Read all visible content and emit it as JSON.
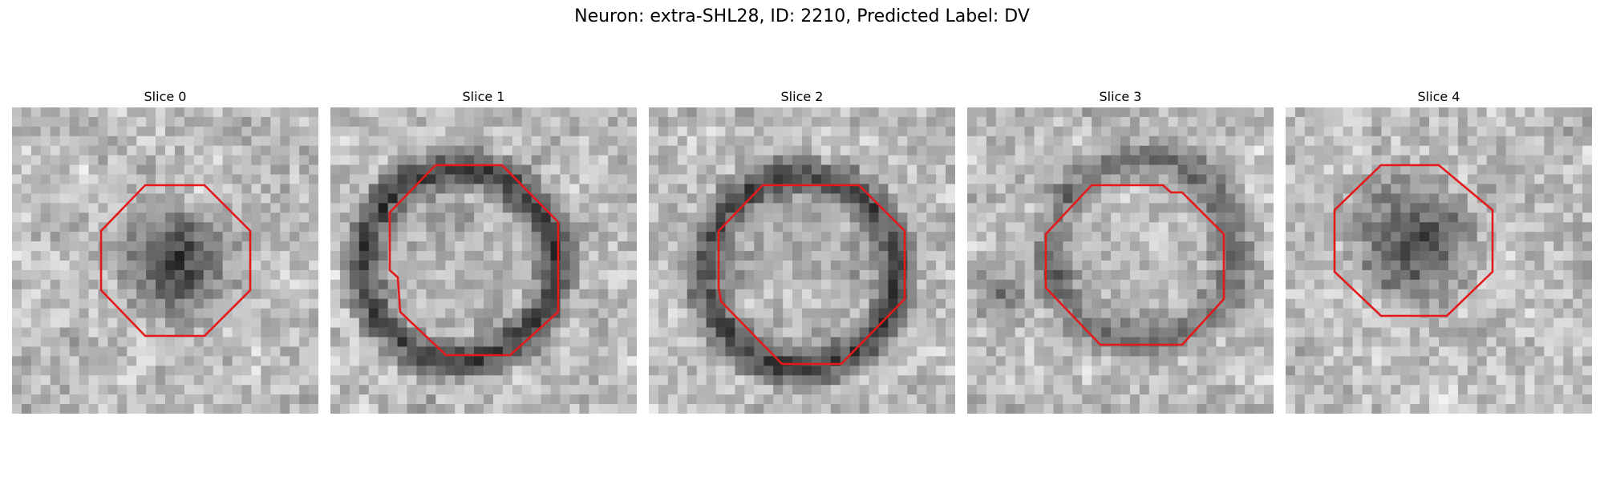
{
  "figure": {
    "title": "Neuron: extra-SHL28, ID: 2210, Predicted Label: DV"
  },
  "colors": {
    "outline": "#e31a1c",
    "background": "#ffffff"
  },
  "panels": [
    {
      "title": "Slice 0",
      "seed": 11,
      "blob": "dark-center"
    },
    {
      "title": "Slice 1",
      "seed": 23,
      "blob": "dark-ring"
    },
    {
      "title": "Slice 2",
      "seed": 37,
      "blob": "dark-ring"
    },
    {
      "title": "Slice 3",
      "seed": 53,
      "blob": "faint-ring"
    },
    {
      "title": "Slice 4",
      "seed": 71,
      "blob": "dark-center"
    }
  ]
}
